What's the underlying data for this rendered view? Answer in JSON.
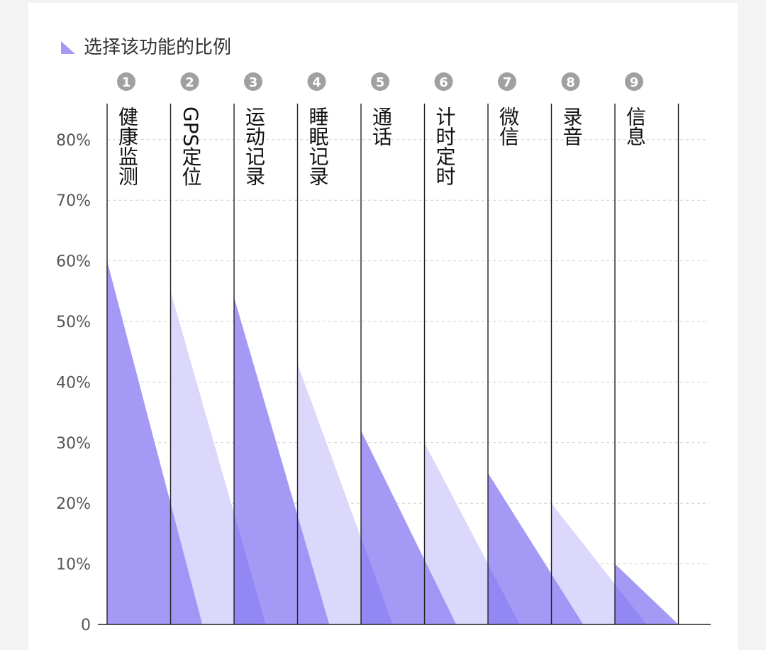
{
  "legend": {
    "label": "选择该功能的比例",
    "position": "top-left"
  },
  "colors": {
    "dark": "#a49af6",
    "light": "#dcd8fb",
    "overlap": "#8d80f3",
    "axis": "#222222",
    "grid": "#cfcfcf",
    "text": "#555555",
    "badge": "#a0a0a0"
  },
  "chart_data": {
    "type": "area",
    "categories": [
      "健康监测",
      "GPS定位",
      "运动记录",
      "睡眠记录",
      "通话",
      "计时定时",
      "微信",
      "录音",
      "信息"
    ],
    "badges": [
      "1",
      "2",
      "3",
      "4",
      "5",
      "6",
      "7",
      "8",
      "9"
    ],
    "series": [
      {
        "values": [
          60,
          55,
          54,
          43,
          32,
          30,
          25,
          20,
          10
        ]
      }
    ],
    "y_ticks": [
      "0",
      "10%",
      "20%",
      "30%",
      "40%",
      "50%",
      "60%",
      "70%",
      "80%"
    ],
    "ylim": [
      0,
      86
    ],
    "grid": true
  }
}
